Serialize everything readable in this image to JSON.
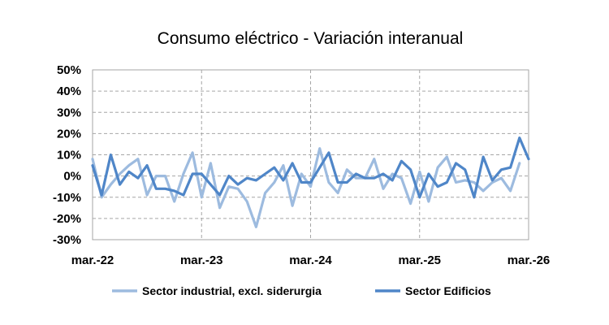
{
  "chart_data": {
    "type": "line",
    "title": "Consumo eléctrico -  Variación interanual",
    "xlabel": "",
    "ylabel": "",
    "x_tick_labels": [
      "mar.-22",
      "mar.-23",
      "mar.-24",
      "mar.-25",
      "mar.-26"
    ],
    "y_tick_labels": [
      "50%",
      "40%",
      "30%",
      "20%",
      "10%",
      "0%",
      "-10%",
      "-20%",
      "-30%"
    ],
    "ylim": [
      -30,
      50
    ],
    "y_unit": "%",
    "grid": true,
    "legend_position": "bottom",
    "series": [
      {
        "name": "Sector industrial, excl. siderurgia",
        "color": "#9dbbdf",
        "values": [
          8,
          -10,
          -4,
          1,
          5,
          8,
          -9,
          0,
          0,
          -12,
          1,
          11,
          -10,
          6,
          -15,
          -5,
          -6,
          -12,
          -24,
          -8,
          -3,
          5,
          -14,
          1,
          -5,
          13,
          -3,
          -8,
          3,
          -1,
          -1,
          8,
          -6,
          1,
          -1,
          -13,
          2,
          -12,
          4,
          9,
          -3,
          -2,
          -3,
          -7,
          -3,
          -1,
          -7,
          6
        ]
      },
      {
        "name": "Sector Edificios",
        "color": "#4f86c8",
        "values": [
          5,
          -9,
          10,
          -4,
          2,
          -1,
          5,
          -6,
          -6,
          -7,
          -9,
          1,
          1,
          -4,
          -9,
          0,
          -4,
          -1,
          -2,
          1,
          4,
          -2,
          6,
          -3,
          -3,
          4,
          11,
          -3,
          -3,
          1,
          -1,
          -1,
          1,
          -2,
          7,
          3,
          -10,
          1,
          -5,
          -3,
          6,
          3,
          -10,
          9,
          -2,
          3,
          4,
          18,
          8
        ]
      }
    ]
  }
}
